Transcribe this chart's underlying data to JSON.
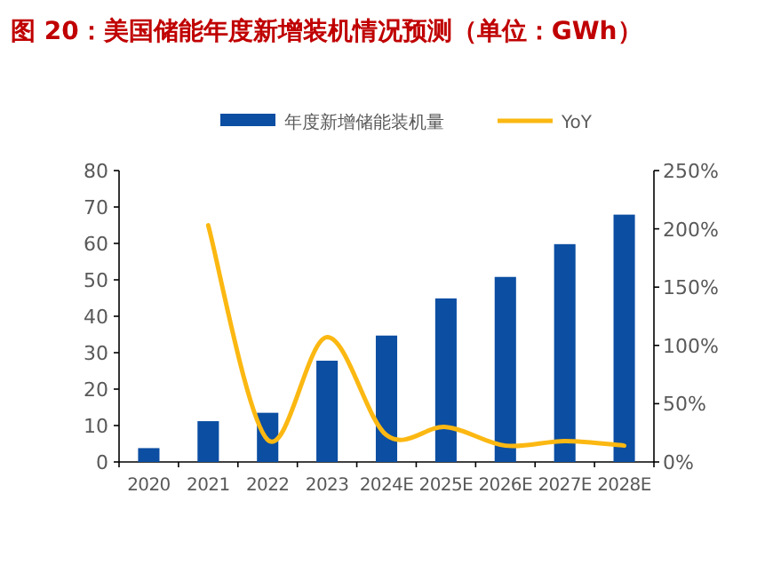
{
  "chart_data": {
    "type": "bar",
    "title": "图 20：美国储能年度新增装机情况预测（单位：GWh）",
    "categories": [
      "2020",
      "2021",
      "2022",
      "2023",
      "2024E",
      "2025E",
      "2026E",
      "2027E",
      "2028E"
    ],
    "series": [
      {
        "name": "年度新增储能装机量",
        "color": "#0b4ea2",
        "values": [
          3.8,
          11.2,
          13.5,
          27.8,
          34.7,
          44.9,
          50.8,
          59.8,
          67.9
        ]
      },
      {
        "name": "YoY",
        "type": "line",
        "axis": "y2",
        "color": "#fbb812",
        "values": [
          null,
          203,
          19,
          107,
          23,
          30,
          14,
          18,
          14
        ]
      }
    ],
    "ylim": [
      0,
      80
    ],
    "yticks": [
      0,
      10,
      20,
      30,
      40,
      50,
      60,
      70,
      80
    ],
    "y2lim": [
      0,
      250
    ],
    "y2ticks": [
      {
        "value": 0,
        "label": "0%"
      },
      {
        "value": 50,
        "label": "50%"
      },
      {
        "value": 100,
        "label": "100%"
      },
      {
        "value": 150,
        "label": "150%"
      },
      {
        "value": 200,
        "label": "200%"
      },
      {
        "value": 250,
        "label": "250%"
      }
    ],
    "legend": "top",
    "grid": false
  }
}
